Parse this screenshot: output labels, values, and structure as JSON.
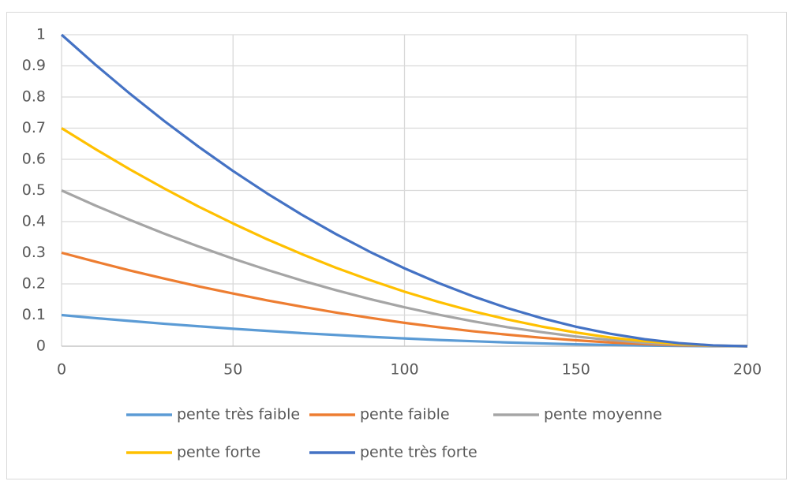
{
  "chart_data": {
    "type": "line",
    "x": [
      0,
      10,
      20,
      30,
      40,
      50,
      60,
      70,
      80,
      90,
      100,
      110,
      120,
      130,
      140,
      150,
      160,
      170,
      180,
      190,
      200
    ],
    "series": [
      {
        "name": "pente très faible",
        "color": "#5b9bd5",
        "values": [
          0.1,
          0.09,
          0.081,
          0.072,
          0.064,
          0.056,
          0.049,
          0.042,
          0.036,
          0.03,
          0.025,
          0.02,
          0.016,
          0.012,
          0.009,
          0.006,
          0.004,
          0.002,
          0.001,
          0,
          0
        ]
      },
      {
        "name": "pente faible",
        "color": "#ed7d31",
        "values": [
          0.3,
          0.271,
          0.243,
          0.217,
          0.192,
          0.169,
          0.147,
          0.127,
          0.108,
          0.091,
          0.075,
          0.061,
          0.048,
          0.037,
          0.027,
          0.019,
          0.012,
          0.007,
          0.003,
          0.001,
          0
        ]
      },
      {
        "name": "pente moyenne",
        "color": "#a5a5a5",
        "values": [
          0.5,
          0.451,
          0.405,
          0.361,
          0.32,
          0.281,
          0.245,
          0.211,
          0.18,
          0.151,
          0.125,
          0.101,
          0.08,
          0.061,
          0.045,
          0.031,
          0.02,
          0.011,
          0.005,
          0.001,
          0
        ]
      },
      {
        "name": "pente forte",
        "color": "#ffc000",
        "values": [
          0.7,
          0.632,
          0.567,
          0.506,
          0.448,
          0.394,
          0.343,
          0.296,
          0.252,
          0.212,
          0.175,
          0.142,
          0.112,
          0.086,
          0.063,
          0.044,
          0.028,
          0.016,
          0.007,
          0.002,
          0
        ]
      },
      {
        "name": "pente très forte",
        "color": "#4472c4",
        "values": [
          1,
          0.9025,
          0.81,
          0.7225,
          0.64,
          0.5625,
          0.49,
          0.4225,
          0.36,
          0.3025,
          0.25,
          0.2025,
          0.16,
          0.1225,
          0.09,
          0.0625,
          0.04,
          0.0225,
          0.01,
          0.0025,
          0
        ]
      }
    ],
    "xlim": [
      0,
      200
    ],
    "xticks": [
      0,
      50,
      100,
      150,
      200
    ],
    "ylim": [
      0,
      1
    ],
    "yticks": [
      0,
      0.1,
      0.2,
      0.3,
      0.4,
      0.5,
      0.6,
      0.7,
      0.8,
      0.9,
      1
    ],
    "grid": true,
    "legend": "bottom"
  }
}
